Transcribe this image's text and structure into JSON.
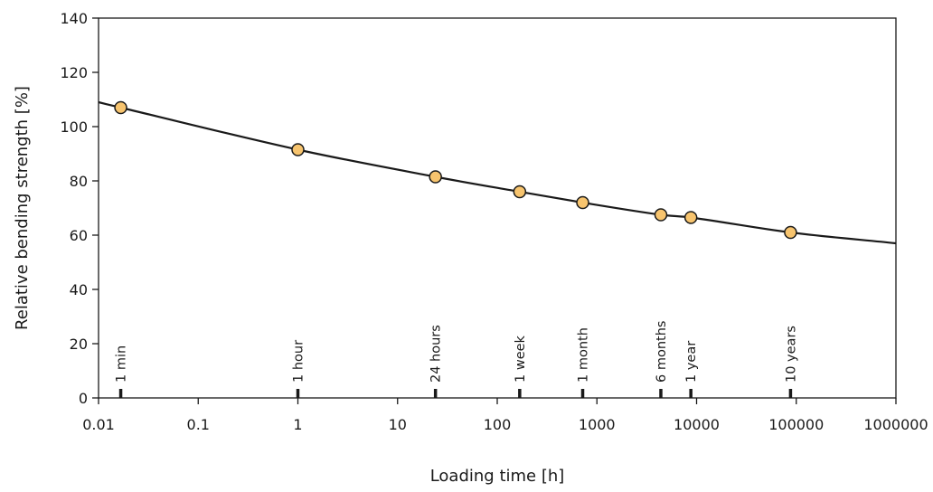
{
  "chart_data": {
    "type": "line",
    "title": "",
    "xlabel": "Loading time [h]",
    "ylabel": "Relative bending strength [%]",
    "xscale": "log",
    "xlim": [
      0.01,
      1000000
    ],
    "ylim": [
      0,
      140
    ],
    "x_ticks": [
      {
        "value": 0.01,
        "label": "0.01"
      },
      {
        "value": 0.1,
        "label": "0.1"
      },
      {
        "value": 1,
        "label": "1"
      },
      {
        "value": 10,
        "label": "10"
      },
      {
        "value": 100,
        "label": "100"
      },
      {
        "value": 1000,
        "label": "1000"
      },
      {
        "value": 10000,
        "label": "10000"
      },
      {
        "value": 100000,
        "label": "100000"
      },
      {
        "value": 1000000,
        "label": "1000000"
      }
    ],
    "y_ticks": [
      {
        "value": 0,
        "label": "0"
      },
      {
        "value": 20,
        "label": "20"
      },
      {
        "value": 40,
        "label": "40"
      },
      {
        "value": 60,
        "label": "60"
      },
      {
        "value": 80,
        "label": "80"
      },
      {
        "value": 100,
        "label": "100"
      },
      {
        "value": 120,
        "label": "120"
      },
      {
        "value": 140,
        "label": "140"
      }
    ],
    "grid": false,
    "legend": "none",
    "curve": {
      "x": [
        0.01,
        0.0167,
        1,
        24,
        168,
        720,
        4380,
        8760,
        87600,
        1000000
      ],
      "y": [
        109,
        107,
        91.5,
        81.5,
        76,
        72,
        67.5,
        66.5,
        61,
        57
      ]
    },
    "points": {
      "x": [
        0.0167,
        1,
        24,
        168,
        720,
        4380,
        8760,
        87600
      ],
      "y": [
        107,
        91.5,
        81.5,
        76,
        72,
        67.5,
        66.5,
        61
      ]
    },
    "time_markers": [
      {
        "x": 0.0167,
        "label": "1 min"
      },
      {
        "x": 1,
        "label": "1 hour"
      },
      {
        "x": 24,
        "label": "24 hours"
      },
      {
        "x": 168,
        "label": "1 week"
      },
      {
        "x": 720,
        "label": "1 month"
      },
      {
        "x": 4380,
        "label": "6 months"
      },
      {
        "x": 8760,
        "label": "1 year"
      },
      {
        "x": 87600,
        "label": "10 years"
      }
    ],
    "colors": {
      "line": "#1a1a1a",
      "marker_fill": "#f7c46e",
      "marker_stroke": "#1a1a1a",
      "frame": "#1a1a1a"
    }
  }
}
